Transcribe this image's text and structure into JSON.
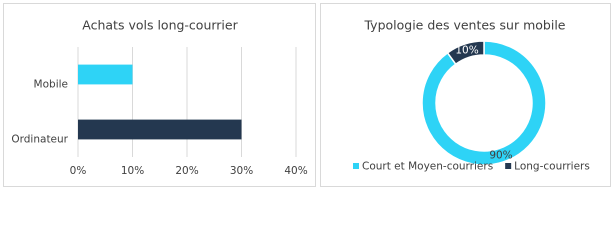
{
  "chart_data": [
    {
      "type": "hbar",
      "title": "Achats vols long-courrier",
      "categories": [
        "Mobile",
        "Ordinateur"
      ],
      "values": [
        10,
        30
      ],
      "colors": [
        "#2ed3f6",
        "#243850"
      ],
      "xlim": [
        0,
        40
      ],
      "xticks": [
        {
          "value": 0,
          "label": "0%"
        },
        {
          "value": 10,
          "label": "10%"
        },
        {
          "value": 20,
          "label": "20%"
        },
        {
          "value": 30,
          "label": "30%"
        },
        {
          "value": 40,
          "label": "40%"
        }
      ],
      "grid": true
    },
    {
      "type": "donut",
      "title": "Typologie des ventes sur mobile",
      "categories": [
        "Court et Moyen-courriers",
        "Long-courriers"
      ],
      "values": [
        90,
        10
      ],
      "value_labels": [
        "90%",
        "10%"
      ],
      "colors": [
        "#2ed3f6",
        "#243850"
      ]
    }
  ]
}
